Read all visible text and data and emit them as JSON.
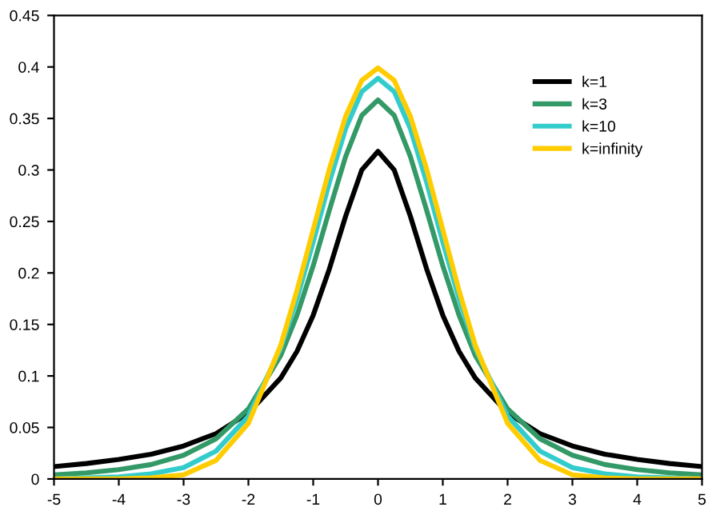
{
  "chart_data": {
    "type": "line",
    "x": [
      -5,
      -4.5,
      -4,
      -3.5,
      -3,
      -2.5,
      -2,
      -1.5,
      -1.25,
      -1,
      -0.75,
      -0.5,
      -0.25,
      0,
      0.25,
      0.5,
      0.75,
      1,
      1.25,
      1.5,
      2,
      2.5,
      3,
      3.5,
      4,
      4.5,
      5
    ],
    "series": [
      {
        "name": "k=1",
        "color": "#000000",
        "values": [
          0.012,
          0.015,
          0.019,
          0.024,
          0.032,
          0.044,
          0.064,
          0.098,
          0.124,
          0.159,
          0.204,
          0.255,
          0.3,
          0.318,
          0.3,
          0.255,
          0.204,
          0.159,
          0.124,
          0.098,
          0.064,
          0.044,
          0.032,
          0.024,
          0.019,
          0.015,
          0.012
        ]
      },
      {
        "name": "k=3",
        "color": "#339966",
        "values": [
          0.004,
          0.006,
          0.009,
          0.014,
          0.023,
          0.039,
          0.068,
          0.12,
          0.159,
          0.207,
          0.261,
          0.313,
          0.353,
          0.368,
          0.353,
          0.313,
          0.261,
          0.207,
          0.159,
          0.12,
          0.068,
          0.039,
          0.023,
          0.014,
          0.009,
          0.006,
          0.004
        ]
      },
      {
        "name": "k=10",
        "color": "#33cccc",
        "values": [
          0.0,
          0.001,
          0.002,
          0.005,
          0.011,
          0.027,
          0.061,
          0.127,
          0.175,
          0.23,
          0.288,
          0.34,
          0.376,
          0.389,
          0.376,
          0.34,
          0.288,
          0.23,
          0.175,
          0.127,
          0.061,
          0.027,
          0.011,
          0.005,
          0.002,
          0.001,
          0.0
        ]
      },
      {
        "name": "k=infinity",
        "color": "#ffcc00",
        "values": [
          0.0,
          0.0,
          0.0,
          0.001,
          0.004,
          0.018,
          0.054,
          0.13,
          0.183,
          0.242,
          0.301,
          0.352,
          0.387,
          0.399,
          0.387,
          0.352,
          0.301,
          0.242,
          0.183,
          0.13,
          0.054,
          0.018,
          0.004,
          0.001,
          0.0,
          0.0,
          0.0
        ]
      }
    ],
    "xlim": [
      -5,
      5
    ],
    "xticks": [
      -5,
      -4,
      -3,
      -2,
      -1,
      0,
      1,
      2,
      3,
      4,
      5
    ],
    "ylim": [
      0,
      0.45
    ],
    "yticks": [
      0,
      0.05,
      0.1,
      0.15,
      0.2,
      0.25,
      0.3,
      0.35,
      0.4,
      0.45
    ],
    "grid": false,
    "legend": "top right",
    "marker": "none",
    "line_style": "solid"
  }
}
